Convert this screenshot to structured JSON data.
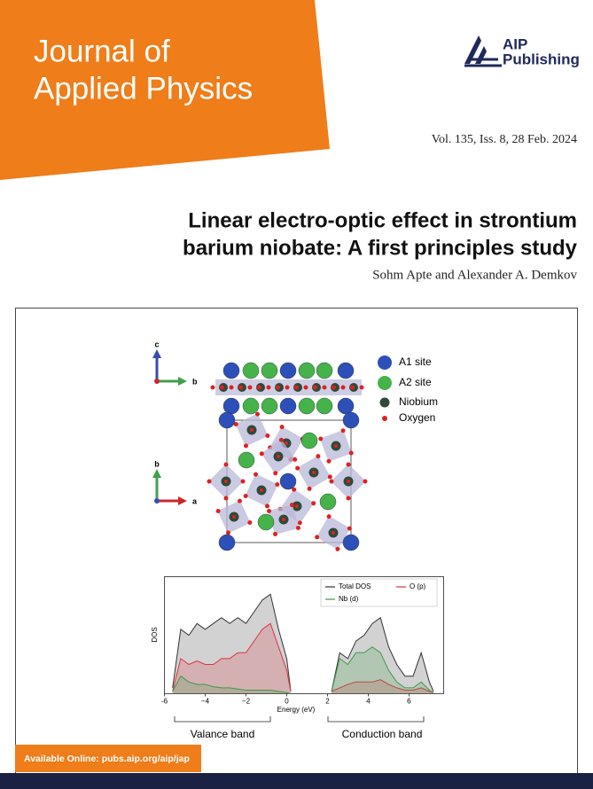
{
  "header": {
    "journal_title_line1": "Journal of",
    "journal_title_line2": "Applied Physics",
    "publisher_line1": "AIP",
    "publisher_line2": "Publishing",
    "issue": "Vol. 135, Iss. 8, 28 Feb. 2024"
  },
  "article": {
    "title_line1": "Linear electro-optic effect in strontium",
    "title_line2": "barium niobate: A first principles study",
    "authors": "Sohm Apte and Alexander A. Demkov"
  },
  "structure": {
    "top_axis_up": "c",
    "top_axis_right": "b",
    "bottom_axis_up": "b",
    "bottom_axis_right": "a",
    "legend": [
      "A1 site",
      "A2 site",
      "Niobium",
      "Oxygen"
    ]
  },
  "chart_data": {
    "type": "area",
    "x_label": "Energy (eV)",
    "y_label": "DOS",
    "x": [
      -5.6,
      -5.2,
      -4.8,
      -4.4,
      -4.0,
      -3.6,
      -3.2,
      -2.8,
      -2.4,
      -2.0,
      -1.6,
      -1.2,
      -0.8,
      -0.4,
      0.0,
      0.2,
      1.0,
      2.2,
      2.6,
      3.0,
      3.4,
      3.8,
      4.2,
      4.6,
      5.0,
      5.4,
      5.8,
      6.2,
      6.6,
      7.0,
      7.2
    ],
    "series": [
      {
        "name": "Total DOS",
        "color": "#333333",
        "values": [
          0.05,
          0.55,
          0.5,
          0.6,
          0.55,
          0.6,
          0.65,
          0.6,
          0.65,
          0.6,
          0.7,
          0.8,
          0.85,
          0.55,
          0.3,
          0.02,
          null,
          0.02,
          0.35,
          0.3,
          0.45,
          0.5,
          0.6,
          0.65,
          0.4,
          0.25,
          0.15,
          0.15,
          0.35,
          0.1,
          0.02
        ]
      },
      {
        "name": "O (p)",
        "color": "#d9363e",
        "values": [
          0.02,
          0.3,
          0.25,
          0.28,
          0.25,
          0.25,
          0.3,
          0.3,
          0.35,
          0.35,
          0.45,
          0.55,
          0.6,
          0.4,
          0.2,
          0.02,
          null,
          0.02,
          0.05,
          0.08,
          0.1,
          0.1,
          0.1,
          0.12,
          0.08,
          0.05,
          0.03,
          0.03,
          0.05,
          0.02,
          0.01
        ]
      },
      {
        "name": "Nb (d)",
        "color": "#3f9a4a",
        "values": [
          0.02,
          0.15,
          0.1,
          0.08,
          0.08,
          0.06,
          0.05,
          0.05,
          0.04,
          0.03,
          0.03,
          0.03,
          0.03,
          0.02,
          0.01,
          0.0,
          null,
          0.02,
          0.3,
          0.25,
          0.35,
          0.35,
          0.4,
          0.35,
          0.2,
          0.1,
          0.05,
          0.05,
          0.1,
          0.03,
          0.01
        ]
      }
    ],
    "xlim": [
      -6,
      7.7
    ],
    "ylim": [
      0,
      1
    ],
    "xticks": [
      -6,
      {
        "value": -4,
        "label": "−4"
      },
      {
        "value": -2,
        "label": "−2"
      },
      0,
      2,
      4,
      6
    ],
    "annotations": [
      "Valance band",
      "Conduction band"
    ]
  },
  "footer": {
    "availability": "Available Online: pubs.aip.org/aip/jap"
  }
}
